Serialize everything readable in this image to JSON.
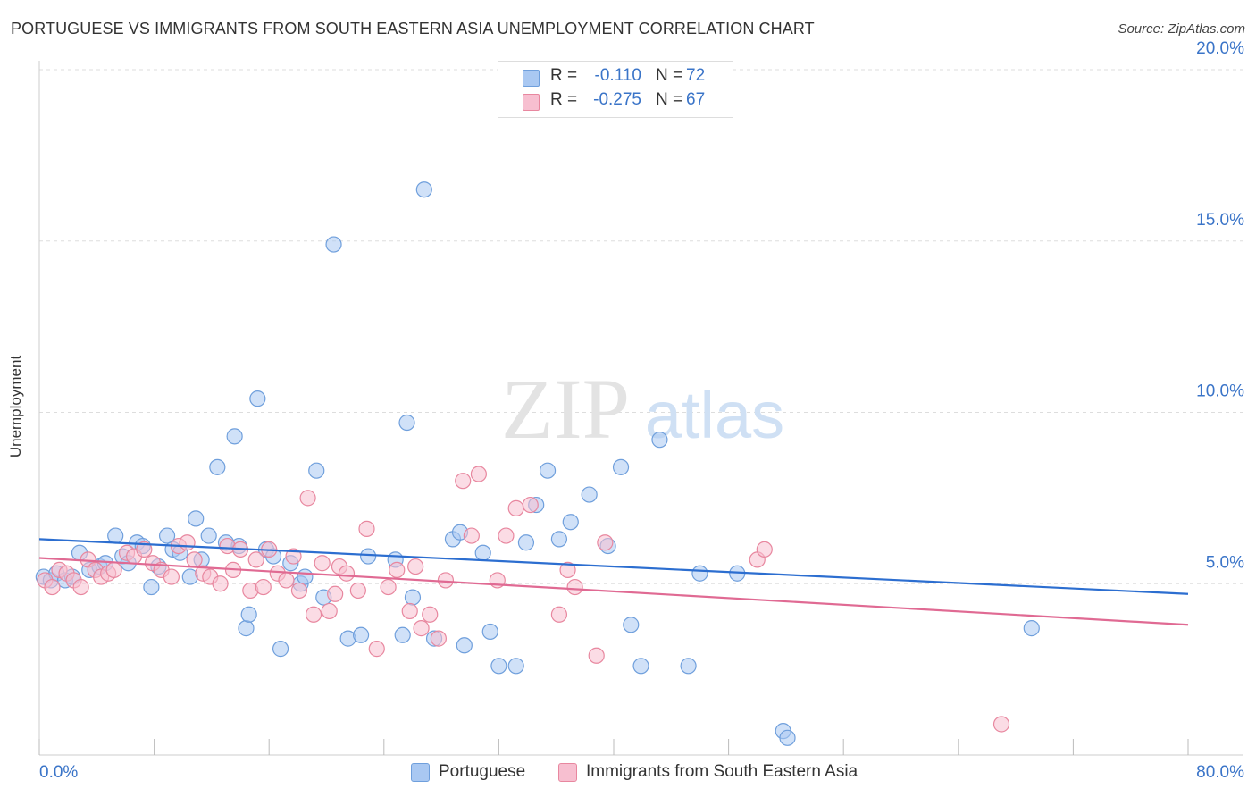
{
  "header": {
    "title": "PORTUGUESE VS IMMIGRANTS FROM SOUTH EASTERN ASIA UNEMPLOYMENT CORRELATION CHART",
    "source": "Source: ZipAtlas.com"
  },
  "stats": {
    "r_label": "R =",
    "n_label": "N =",
    "rows": [
      {
        "r": "-0.110",
        "n": "72",
        "color": "#a9c8f2",
        "border": "#6f9fdc"
      },
      {
        "r": "-0.275",
        "n": "67",
        "color": "#f7bfd0",
        "border": "#e8879f"
      }
    ]
  },
  "watermark": {
    "zip": "ZIP",
    "atlas": "atlas"
  },
  "chart_data": {
    "type": "scatter",
    "xlabel": "",
    "ylabel": "Unemployment",
    "xlim": [
      0,
      80
    ],
    "ylim": [
      0,
      20
    ],
    "x_tick_labels": [
      "0.0%",
      "80.0%"
    ],
    "y_ticks": [
      5,
      10,
      15,
      20
    ],
    "y_tick_labels": [
      "5.0%",
      "10.0%",
      "15.0%",
      "20.0%"
    ],
    "grid": true,
    "legend_position": "bottom",
    "series": [
      {
        "name": "Portuguese",
        "color": "#a9c8f2",
        "stroke": "#6f9fdc",
        "line_color": "#2c6ed0",
        "trend": {
          "x": [
            0,
            80
          ],
          "y": [
            6.3,
            4.7
          ]
        },
        "points": [
          [
            0.3,
            5.2
          ],
          [
            0.8,
            5.1
          ],
          [
            1.2,
            5.3
          ],
          [
            1.8,
            5.1
          ],
          [
            2.3,
            5.2
          ],
          [
            2.8,
            5.9
          ],
          [
            3.5,
            5.4
          ],
          [
            4.2,
            5.5
          ],
          [
            4.6,
            5.6
          ],
          [
            5.3,
            6.4
          ],
          [
            5.8,
            5.8
          ],
          [
            6.2,
            5.6
          ],
          [
            6.8,
            6.2
          ],
          [
            7.2,
            6.1
          ],
          [
            7.8,
            4.9
          ],
          [
            8.3,
            5.5
          ],
          [
            8.9,
            6.4
          ],
          [
            9.3,
            6.0
          ],
          [
            9.8,
            5.9
          ],
          [
            10.5,
            5.2
          ],
          [
            10.9,
            6.9
          ],
          [
            11.3,
            5.7
          ],
          [
            11.8,
            6.4
          ],
          [
            12.4,
            8.4
          ],
          [
            13.0,
            6.2
          ],
          [
            13.6,
            9.3
          ],
          [
            13.9,
            6.1
          ],
          [
            14.4,
            3.7
          ],
          [
            14.6,
            4.1
          ],
          [
            15.2,
            10.4
          ],
          [
            15.8,
            6.0
          ],
          [
            16.3,
            5.8
          ],
          [
            16.8,
            3.1
          ],
          [
            17.5,
            5.6
          ],
          [
            18.2,
            5.0
          ],
          [
            18.5,
            5.2
          ],
          [
            19.3,
            8.3
          ],
          [
            19.8,
            4.6
          ],
          [
            20.5,
            14.9
          ],
          [
            21.5,
            3.4
          ],
          [
            22.4,
            3.5
          ],
          [
            22.9,
            5.8
          ],
          [
            24.8,
            5.7
          ],
          [
            25.3,
            3.5
          ],
          [
            25.6,
            9.7
          ],
          [
            26.0,
            4.6
          ],
          [
            26.8,
            16.5
          ],
          [
            27.5,
            3.4
          ],
          [
            28.8,
            6.3
          ],
          [
            29.3,
            6.5
          ],
          [
            29.6,
            3.2
          ],
          [
            30.9,
            5.9
          ],
          [
            31.4,
            3.6
          ],
          [
            32.0,
            2.6
          ],
          [
            33.2,
            2.6
          ],
          [
            33.9,
            6.2
          ],
          [
            34.6,
            7.3
          ],
          [
            35.4,
            8.3
          ],
          [
            36.2,
            6.3
          ],
          [
            37.0,
            6.8
          ],
          [
            38.3,
            7.6
          ],
          [
            39.6,
            6.1
          ],
          [
            40.5,
            8.4
          ],
          [
            41.2,
            3.8
          ],
          [
            41.9,
            2.6
          ],
          [
            43.2,
            9.2
          ],
          [
            45.2,
            2.6
          ],
          [
            46.0,
            5.3
          ],
          [
            48.6,
            5.3
          ],
          [
            51.8,
            0.7
          ],
          [
            52.1,
            0.5
          ],
          [
            69.1,
            3.7
          ]
        ]
      },
      {
        "name": "Immigrants from South Eastern Asia",
        "color": "#f7bfd0",
        "stroke": "#e8879f",
        "line_color": "#e06a93",
        "trend": {
          "x": [
            0,
            80
          ],
          "y": [
            5.75,
            3.8
          ]
        },
        "points": [
          [
            0.4,
            5.1
          ],
          [
            0.9,
            4.9
          ],
          [
            1.4,
            5.4
          ],
          [
            1.9,
            5.3
          ],
          [
            2.4,
            5.1
          ],
          [
            2.9,
            4.9
          ],
          [
            3.4,
            5.7
          ],
          [
            3.9,
            5.4
          ],
          [
            4.3,
            5.2
          ],
          [
            4.8,
            5.3
          ],
          [
            5.2,
            5.4
          ],
          [
            6.1,
            5.9
          ],
          [
            6.6,
            5.8
          ],
          [
            7.3,
            6.0
          ],
          [
            7.9,
            5.6
          ],
          [
            8.5,
            5.4
          ],
          [
            9.2,
            5.2
          ],
          [
            9.7,
            6.1
          ],
          [
            10.3,
            6.2
          ],
          [
            10.8,
            5.7
          ],
          [
            11.4,
            5.3
          ],
          [
            11.9,
            5.2
          ],
          [
            12.6,
            5.0
          ],
          [
            13.1,
            6.1
          ],
          [
            13.5,
            5.4
          ],
          [
            14.0,
            6.0
          ],
          [
            14.7,
            4.8
          ],
          [
            15.1,
            5.7
          ],
          [
            15.6,
            4.9
          ],
          [
            16.0,
            6.0
          ],
          [
            16.6,
            5.3
          ],
          [
            17.2,
            5.1
          ],
          [
            17.7,
            5.8
          ],
          [
            18.1,
            4.8
          ],
          [
            18.7,
            7.5
          ],
          [
            19.1,
            4.1
          ],
          [
            19.7,
            5.6
          ],
          [
            20.2,
            4.2
          ],
          [
            20.6,
            4.7
          ],
          [
            20.9,
            5.5
          ],
          [
            21.4,
            5.3
          ],
          [
            22.2,
            4.8
          ],
          [
            22.8,
            6.6
          ],
          [
            23.5,
            3.1
          ],
          [
            24.3,
            4.9
          ],
          [
            24.9,
            5.4
          ],
          [
            25.8,
            4.2
          ],
          [
            26.2,
            5.5
          ],
          [
            26.6,
            3.7
          ],
          [
            27.2,
            4.1
          ],
          [
            27.8,
            3.4
          ],
          [
            28.3,
            5.1
          ],
          [
            29.5,
            8.0
          ],
          [
            30.1,
            6.4
          ],
          [
            30.6,
            8.2
          ],
          [
            31.9,
            5.1
          ],
          [
            32.5,
            6.4
          ],
          [
            33.2,
            7.2
          ],
          [
            34.2,
            7.3
          ],
          [
            36.2,
            4.1
          ],
          [
            36.8,
            5.4
          ],
          [
            37.3,
            4.9
          ],
          [
            38.8,
            2.9
          ],
          [
            39.4,
            6.2
          ],
          [
            50.0,
            5.7
          ],
          [
            50.5,
            6.0
          ],
          [
            67.0,
            0.9
          ]
        ]
      }
    ]
  }
}
